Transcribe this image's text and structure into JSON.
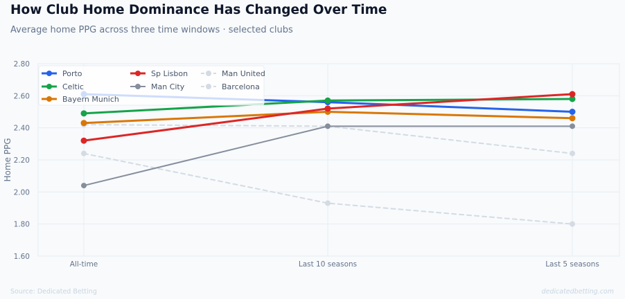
{
  "header": {
    "title": "How Club Home Dominance Has Changed Over Time",
    "subtitle": "Average home PPG across three time windows · selected clubs"
  },
  "footer": {
    "source": "Source: Dedicated Betting",
    "site": "dedicatedbetting.com"
  },
  "chart_data": {
    "type": "line",
    "title": "How Club Home Dominance Has Changed Over Time",
    "subtitle": "Average home PPG across three time windows · selected clubs",
    "xlabel": "",
    "ylabel": "Home PPG",
    "categories": [
      "All-time",
      "Last 10 seasons",
      "Last 5 seasons"
    ],
    "ylim": [
      1.6,
      2.8
    ],
    "yticks": [
      "1.60",
      "1.80",
      "2.00",
      "2.20",
      "2.40",
      "2.60",
      "2.80"
    ],
    "grid": true,
    "legend_position": "top-left",
    "series": [
      {
        "name": "Porto",
        "values": [
          2.61,
          2.56,
          2.5
        ],
        "color": "#2563eb",
        "style": "solid",
        "emphasis": "strong"
      },
      {
        "name": "Celtic",
        "values": [
          2.49,
          2.57,
          2.58
        ],
        "color": "#16a34a",
        "style": "solid",
        "emphasis": "strong"
      },
      {
        "name": "Bayern Munich",
        "values": [
          2.43,
          2.5,
          2.46
        ],
        "color": "#d97706",
        "style": "solid",
        "emphasis": "strong"
      },
      {
        "name": "Sp Lisbon",
        "values": [
          2.32,
          2.52,
          2.61
        ],
        "color": "#dc2626",
        "style": "solid",
        "emphasis": "strong"
      },
      {
        "name": "Man City",
        "values": [
          2.04,
          2.41,
          2.41
        ],
        "color": "#868e9c",
        "style": "solid",
        "emphasis": "medium"
      },
      {
        "name": "Man United",
        "values": [
          2.42,
          2.41,
          2.24
        ],
        "color": "#d4dbe3",
        "style": "dashed",
        "emphasis": "faint"
      },
      {
        "name": "Barcelona",
        "values": [
          2.24,
          1.93,
          1.8
        ],
        "color": "#d4dbe3",
        "style": "dashed",
        "emphasis": "faint"
      }
    ]
  }
}
